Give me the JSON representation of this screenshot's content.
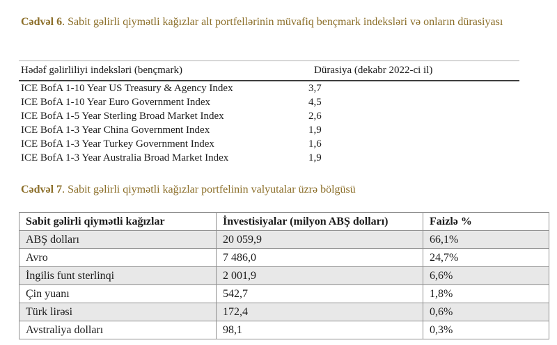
{
  "colors": {
    "caption_gold": "#8c6f2a",
    "zebra_row_bg": "#e8e8e8",
    "grid_border": "#8f8f8f",
    "header_rule_dark": "#3d3d3d",
    "header_rule_light": "#adadad",
    "text": "#1c1c1c"
  },
  "table6": {
    "caption_label": "Cədvəl 6",
    "caption_text": ". Sabit gəlirli qiymətli kağızlar alt portfellərinin müvafiq bençmark indeksləri və onların dürasiyası",
    "col1_header": "Hədəf gəlirliliyi indeksləri (bençmark)",
    "col2_header": "Dürasiya (dekabr 2022-ci il)",
    "rows": [
      {
        "index": "ICE BofA 1-10 Year US Treasury & Agency Index",
        "duration": "3,7"
      },
      {
        "index": "ICE BofA 1-10 Year Euro Government Index",
        "duration": "4,5"
      },
      {
        "index": "ICE BofA 1-5 Year Sterling Broad Market Index",
        "duration": "2,6"
      },
      {
        "index": "ICE BofA 1-3 Year China Government Index",
        "duration": "1,9"
      },
      {
        "index": "ICE BofA 1-3 Year Turkey Government Index",
        "duration": "1,6"
      },
      {
        "index": "ICE BofA 1-3 Year Australia Broad Market Index",
        "duration": "1,9"
      }
    ]
  },
  "table7": {
    "caption_label": "Cədvəl 7",
    "caption_text": ". Sabit gəlirli qiymətli kağızlar portfelinin valyutalar üzrə bölgüsü",
    "headers": {
      "currency": "Sabit gəlirli qiymətli kağızlar",
      "investment": "İnvestisiyalar (milyon ABŞ dolları)",
      "percent": "Faizlə %"
    },
    "rows": [
      {
        "currency": "ABŞ dolları",
        "investment": "20 059,9",
        "percent": "66,1%"
      },
      {
        "currency": "Avro",
        "investment": "7 486,0",
        "percent": "24,7%"
      },
      {
        "currency": "İngilis funt sterlinqi",
        "investment": "2 001,9",
        "percent": "6,6%"
      },
      {
        "currency": "Çin yuanı",
        "investment": "542,7",
        "percent": "1,8%"
      },
      {
        "currency": "Türk lirəsi",
        "investment": "172,4",
        "percent": "0,6%"
      },
      {
        "currency": "Avstraliya dolları",
        "investment": "98,1",
        "percent": "0,3%"
      }
    ]
  }
}
